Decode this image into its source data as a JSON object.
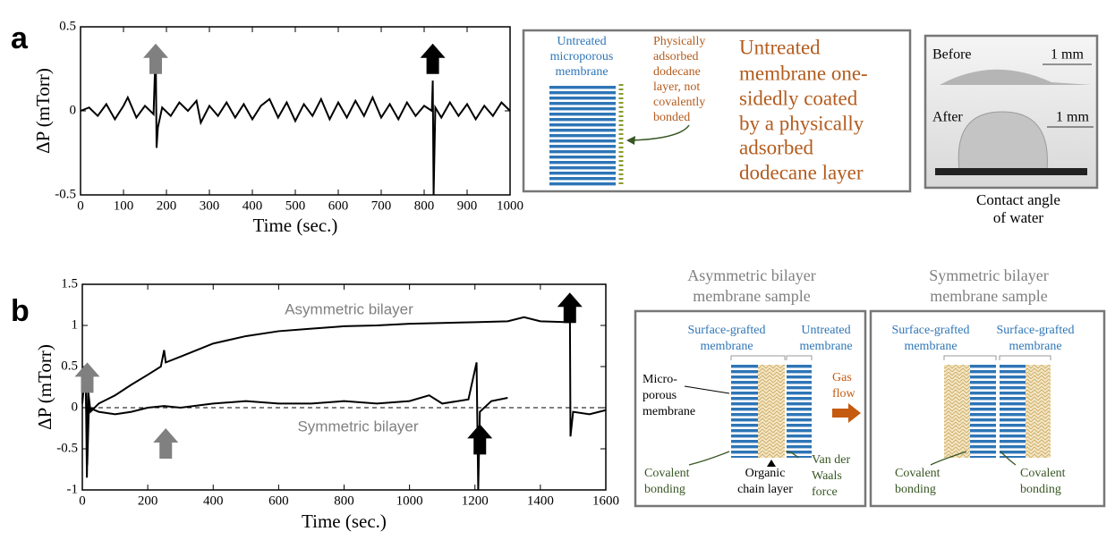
{
  "chart_data": [
    {
      "type": "line",
      "xlabel": "Time (sec.)",
      "ylabel": "ΔP (mTorr)",
      "xlim": [
        0,
        1000
      ],
      "xticks": [
        0,
        100,
        200,
        300,
        400,
        500,
        600,
        700,
        800,
        900,
        1000
      ],
      "ylim": [
        -0.5,
        0.5
      ],
      "yticks": [
        -0.5,
        0,
        0.5
      ],
      "series": [
        {
          "color": "#000000",
          "x": [
            0,
            20,
            40,
            60,
            80,
            100,
            110,
            130,
            150,
            170,
            175,
            177,
            180,
            190,
            210,
            230,
            250,
            270,
            280,
            300,
            320,
            340,
            360,
            380,
            400,
            420,
            440,
            460,
            480,
            500,
            520,
            540,
            560,
            580,
            600,
            620,
            640,
            660,
            680,
            700,
            720,
            740,
            760,
            780,
            800,
            818,
            820,
            822,
            826,
            840,
            860,
            880,
            900,
            920,
            940,
            960,
            980,
            1000
          ],
          "values": [
            0,
            0.02,
            -0.03,
            0.04,
            -0.05,
            0.03,
            0.08,
            -0.04,
            0.03,
            -0.02,
            0.38,
            -0.22,
            -0.1,
            0.02,
            -0.03,
            0.05,
            0,
            0.06,
            -0.07,
            0.03,
            -0.03,
            0.05,
            -0.04,
            0.04,
            -0.05,
            0.03,
            0.07,
            -0.04,
            0.05,
            -0.06,
            0.04,
            -0.03,
            0.07,
            -0.05,
            0.05,
            -0.04,
            0.06,
            -0.03,
            0.08,
            -0.04,
            0.04,
            -0.05,
            0.05,
            -0.03,
            0.03,
            0,
            0.18,
            -0.5,
            0.02,
            -0.04,
            0.05,
            -0.03,
            0.04,
            -0.05,
            0.03,
            -0.03,
            0.05,
            0
          ]
        }
      ],
      "arrows": [
        {
          "x": 175,
          "y": 0.4,
          "direction": "down",
          "color": "#808080"
        },
        {
          "x": 820,
          "y": 0.4,
          "direction": "down",
          "color": "#000000"
        }
      ]
    },
    {
      "type": "line",
      "xlabel": "Time (sec.)",
      "ylabel": "ΔP (mTorr)",
      "xlim": [
        0,
        1600
      ],
      "xticks": [
        0,
        200,
        400,
        600,
        800,
        1000,
        1200,
        1400,
        1600
      ],
      "ylim": [
        -1,
        1.5
      ],
      "yticks": [
        -1,
        -0.5,
        0,
        0.5,
        1,
        1.5
      ],
      "reference_line": 0,
      "series": [
        {
          "name": "Asymmetric bilayer",
          "color": "#000000",
          "label_color": "#808080",
          "x": [
            0,
            10,
            14,
            18,
            25,
            50,
            100,
            150,
            200,
            240,
            250,
            255,
            300,
            400,
            500,
            600,
            700,
            800,
            900,
            1000,
            1100,
            1200,
            1300,
            1350,
            1400,
            1485,
            1490,
            1492,
            1500,
            1550,
            1600
          ],
          "values": [
            0.05,
            0.5,
            -0.85,
            0.2,
            -0.05,
            0.05,
            0.15,
            0.28,
            0.4,
            0.5,
            0.7,
            0.55,
            0.62,
            0.78,
            0.87,
            0.93,
            0.96,
            0.99,
            1,
            1.02,
            1.03,
            1.04,
            1.05,
            1.1,
            1.05,
            1.04,
            1.35,
            -0.35,
            -0.05,
            -0.08,
            -0.03
          ]
        },
        {
          "name": "Symmetric bilayer",
          "color": "#000000",
          "label_color": "#808080",
          "x": [
            0,
            10,
            15,
            20,
            50,
            100,
            150,
            200,
            250,
            300,
            400,
            500,
            600,
            700,
            800,
            900,
            1000,
            1060,
            1100,
            1180,
            1205,
            1210,
            1215,
            1250,
            1300
          ],
          "values": [
            0.1,
            0.5,
            -0.7,
            0,
            -0.05,
            -0.08,
            -0.05,
            0,
            0.02,
            0,
            0.05,
            0.08,
            0.05,
            0.05,
            0.08,
            0.05,
            0.08,
            0.15,
            0.05,
            0.1,
            0.55,
            -1,
            -0.05,
            0.08,
            0.12
          ]
        }
      ],
      "arrows": [
        {
          "x": 15,
          "y": 0.55,
          "direction": "down",
          "color": "#808080"
        },
        {
          "x": 255,
          "y": -0.25,
          "direction": "up",
          "color": "#808080"
        },
        {
          "x": 1215,
          "y": -0.2,
          "direction": "up",
          "color": "#000000"
        },
        {
          "x": 1490,
          "y": 1.4,
          "direction": "down",
          "color": "#000000"
        }
      ]
    }
  ],
  "panel_labels": [
    "a",
    "b"
  ],
  "diagram_a": {
    "membrane_label": [
      "Untreated",
      "microporous",
      "membrane"
    ],
    "layer_label": [
      "Physically",
      "adsorbed",
      "dodecane",
      "layer, not",
      "covalently",
      "bonded"
    ],
    "description": [
      "Untreated",
      "membrane one-",
      "sidedly coated",
      "by a physically",
      "adsorbed",
      "dodecane layer"
    ]
  },
  "photo": {
    "before": "Before",
    "after": "After",
    "scale_before": "1 mm",
    "scale_after": "1 mm",
    "caption": [
      "Contact angle",
      "of water"
    ]
  },
  "diagram_b": {
    "asymmetric": {
      "title": [
        "Asymmetric bilayer",
        "membrane sample"
      ],
      "left_label": [
        "Surface-grafted",
        "membrane"
      ],
      "right_label": [
        "Untreated",
        "membrane"
      ],
      "micro_label": [
        "Micro-",
        "porous",
        "membrane"
      ],
      "flow_label": [
        "Gas",
        "flow"
      ],
      "covalent": [
        "Covalent",
        "bonding"
      ],
      "organic": [
        "Organic",
        "chain layer"
      ],
      "vdw": [
        "Van der",
        "Waals",
        "force"
      ]
    },
    "symmetric": {
      "title": [
        "Symmetric bilayer",
        "membrane sample"
      ],
      "left_label": [
        "Surface-grafted",
        "membrane"
      ],
      "right_label": [
        "Surface-grafted",
        "membrane"
      ],
      "covalent_left": [
        "Covalent",
        "bonding"
      ],
      "covalent_right": [
        "Covalent",
        "bonding"
      ]
    }
  }
}
